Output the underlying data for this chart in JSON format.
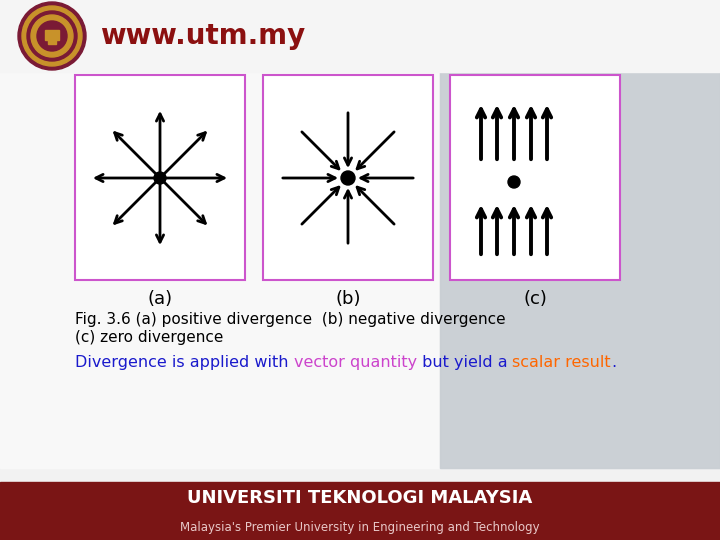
{
  "bg_top_color": "#ffffff",
  "bg_main_color": "#f0f0f0",
  "bg_right_color": "#d8dce0",
  "header_url": "www.utm.my",
  "header_color": "#8B1010",
  "panel_border_color": "#cc55cc",
  "panel_bg": "#ffffff",
  "arrow_color": "#000000",
  "label_a": "(a)",
  "label_b": "(b)",
  "label_c": "(c)",
  "caption_line1": "Fig. 3.6 (a) positive divergence  (b) negative divergence",
  "caption_line2": "(c) zero divergence",
  "divergence_text_color": "#0000bb",
  "bottom_text_parts": [
    [
      "Divergence is applied with ",
      "#1a1acc"
    ],
    [
      "vector quantity",
      "#cc44cc"
    ],
    [
      " but yield a ",
      "#1a1acc"
    ],
    [
      "scalar result",
      "#ff6600"
    ],
    [
      ".",
      "#1a1acc"
    ]
  ],
  "footer_bg": "#7a1515",
  "footer_text1": "UNIVERSITI TEKNOLOGI MALAYSIA",
  "footer_text2": "Malaysia's Premier University in Engineering and Technology",
  "logo_outer_color": "#7a1a35",
  "logo_ring_color": "#c8922a",
  "logo_inner_color": "#7a1a35"
}
